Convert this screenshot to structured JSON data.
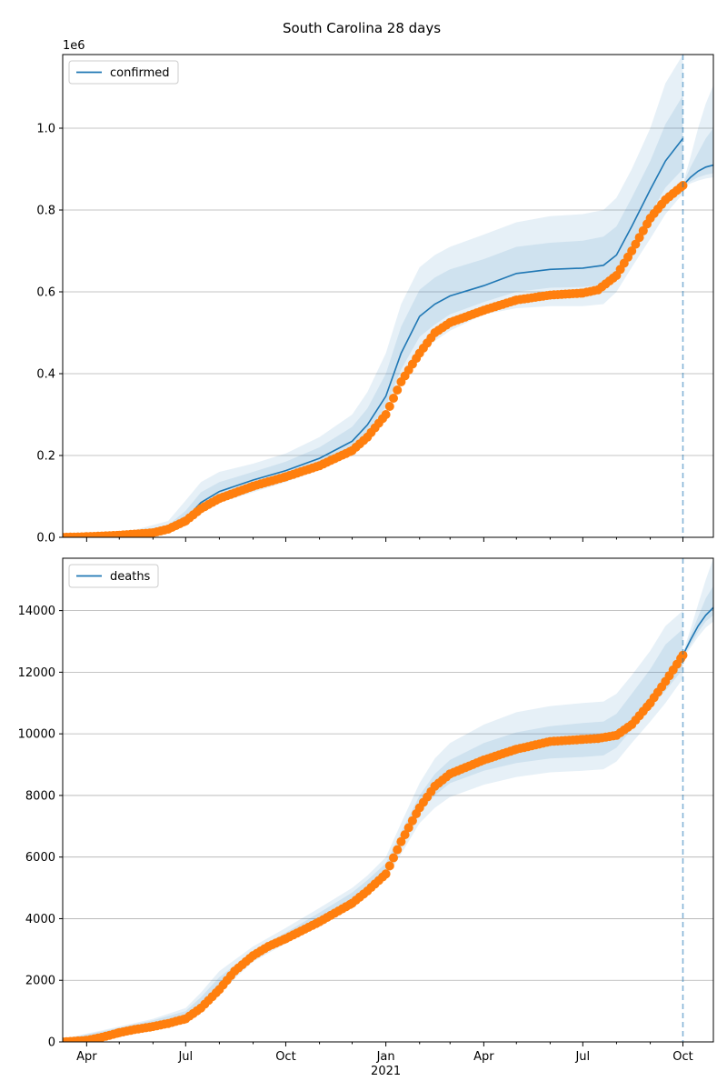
{
  "title": "South Carolina 28 days",
  "colors": {
    "model": "#1f77b4",
    "observed": "#ff7f0e",
    "band": "#1f77b4",
    "grid": "#b0b0b0"
  },
  "x_axis": {
    "ticks": [
      {
        "date": "2020-04-01",
        "label": "Apr"
      },
      {
        "date": "2020-07-01",
        "label": "Jul"
      },
      {
        "date": "2020-10-01",
        "label": "Oct"
      },
      {
        "date": "2021-01-01",
        "label": "Jan"
      },
      {
        "date": "2021-04-01",
        "label": "Apr"
      },
      {
        "date": "2021-07-01",
        "label": "Jul"
      },
      {
        "date": "2021-10-01",
        "label": "Oct"
      }
    ],
    "year_label": "2021",
    "year_label_date": "2021-01-01"
  },
  "chart_data": [
    {
      "type": "line",
      "title": "South Carolina 28 days",
      "xlabel": "",
      "ylabel": "",
      "x_range": [
        "2020-03-10",
        "2021-10-29"
      ],
      "ylim": [
        0,
        1180000
      ],
      "y_ticks": [
        0,
        200000,
        400000,
        600000,
        800000,
        1000000
      ],
      "y_tick_labels": [
        "0.0",
        "0.2",
        "0.4",
        "0.6",
        "0.8",
        "1.0"
      ],
      "y_offset_label": "1e6",
      "grid": "y",
      "legend": {
        "position": "top-left",
        "entries": [
          "confirmed"
        ]
      },
      "forecast_start": "2021-10-01",
      "series": [
        {
          "name": "confirmed",
          "style": "line",
          "x": [
            "2020-03-10",
            "2020-05-01",
            "2020-06-15",
            "2020-07-01",
            "2020-07-15",
            "2020-08-01",
            "2020-09-01",
            "2020-10-01",
            "2020-11-01",
            "2020-12-01",
            "2020-12-15",
            "2021-01-01",
            "2021-01-15",
            "2021-02-01",
            "2021-02-15",
            "2021-03-01",
            "2021-04-01",
            "2021-05-01",
            "2021-06-01",
            "2021-07-01",
            "2021-07-20",
            "2021-08-01",
            "2021-08-15",
            "2021-09-01",
            "2021-09-15",
            "2021-10-01"
          ],
          "y": [
            0,
            5000,
            22000,
            45000,
            85000,
            112000,
            140000,
            163000,
            193000,
            235000,
            275000,
            345000,
            450000,
            540000,
            570000,
            590000,
            615000,
            645000,
            655000,
            658000,
            665000,
            690000,
            760000,
            850000,
            920000,
            975000
          ]
        },
        {
          "name": "",
          "style": "band",
          "bands": [
            {
              "x": [
                "2020-03-10",
                "2020-05-01",
                "2020-06-15",
                "2020-07-01",
                "2020-07-15",
                "2020-08-01",
                "2020-09-01",
                "2020-10-01",
                "2020-11-01",
                "2020-12-01",
                "2020-12-15",
                "2021-01-01",
                "2021-01-15",
                "2021-02-01",
                "2021-02-15",
                "2021-03-01",
                "2021-04-01",
                "2021-05-01",
                "2021-06-01",
                "2021-07-01",
                "2021-07-20",
                "2021-08-01",
                "2021-08-15",
                "2021-09-01",
                "2021-09-15",
                "2021-10-01"
              ],
              "lower": [
                0,
                4000,
                15000,
                35000,
                65000,
                85000,
                110000,
                135000,
                165000,
                205000,
                240000,
                300000,
                375000,
                445000,
                480000,
                505000,
                545000,
                560000,
                565000,
                565000,
                570000,
                600000,
                660000,
                730000,
                790000,
                840000
              ],
              "upper": [
                0,
                8000,
                40000,
                90000,
                135000,
                160000,
                180000,
                205000,
                245000,
                300000,
                355000,
                450000,
                570000,
                660000,
                690000,
                710000,
                740000,
                770000,
                785000,
                790000,
                800000,
                830000,
                900000,
                1000000,
                1110000,
                1180000
              ]
            },
            {
              "x": [
                "2020-03-10",
                "2020-05-01",
                "2020-06-15",
                "2020-07-01",
                "2020-07-15",
                "2020-08-01",
                "2020-09-01",
                "2020-10-01",
                "2020-11-01",
                "2020-12-01",
                "2020-12-15",
                "2021-01-01",
                "2021-01-15",
                "2021-02-01",
                "2021-02-15",
                "2021-03-01",
                "2021-04-01",
                "2021-05-01",
                "2021-06-01",
                "2021-07-01",
                "2021-07-20",
                "2021-08-01",
                "2021-08-15",
                "2021-09-01",
                "2021-09-15",
                "2021-10-01"
              ],
              "lower": [
                0,
                4500,
                18000,
                40000,
                75000,
                98000,
                125000,
                148000,
                178000,
                220000,
                257000,
                320000,
                410000,
                490000,
                520000,
                545000,
                575000,
                600000,
                610000,
                612000,
                617000,
                645000,
                710000,
                790000,
                855000,
                900000
              ],
              "upper": [
                0,
                6500,
                30000,
                65000,
                110000,
                135000,
                160000,
                185000,
                220000,
                270000,
                315000,
                400000,
                515000,
                605000,
                635000,
                655000,
                680000,
                710000,
                720000,
                725000,
                735000,
                760000,
                830000,
                920000,
                1010000,
                1080000
              ]
            }
          ]
        },
        {
          "name": "",
          "style": "line",
          "x": [
            "2021-10-01",
            "2021-10-08",
            "2021-10-15",
            "2021-10-22",
            "2021-10-29"
          ],
          "y": [
            860000,
            880000,
            895000,
            905000,
            910000
          ]
        },
        {
          "name": "",
          "style": "band",
          "bands": [
            {
              "x": [
                "2021-10-01",
                "2021-10-08",
                "2021-10-15",
                "2021-10-22",
                "2021-10-29"
              ],
              "lower": [
                855000,
                865000,
                872000,
                877000,
                880000
              ],
              "upper": [
                865000,
                930000,
                1000000,
                1060000,
                1105000
              ]
            },
            {
              "x": [
                "2021-10-01",
                "2021-10-08",
                "2021-10-15",
                "2021-10-22",
                "2021-10-29"
              ],
              "lower": [
                857000,
                870000,
                880000,
                886000,
                890000
              ],
              "upper": [
                863000,
                905000,
                940000,
                975000,
                1000000
              ]
            }
          ]
        },
        {
          "name": "",
          "style": "scatter",
          "x": [
            "2020-03-10",
            "2020-04-01",
            "2020-05-01",
            "2020-06-01",
            "2020-06-15",
            "2020-07-01",
            "2020-07-15",
            "2020-08-01",
            "2020-09-01",
            "2020-10-01",
            "2020-11-01",
            "2020-12-01",
            "2020-12-15",
            "2021-01-01",
            "2021-01-15",
            "2021-02-01",
            "2021-02-15",
            "2021-03-01",
            "2021-04-01",
            "2021-05-01",
            "2021-06-01",
            "2021-07-01",
            "2021-07-15",
            "2021-08-01",
            "2021-08-15",
            "2021-09-01",
            "2021-09-15",
            "2021-10-01"
          ],
          "y": [
            0,
            1500,
            5000,
            11000,
            20000,
            40000,
            70000,
            95000,
            125000,
            148000,
            175000,
            212000,
            245000,
            300000,
            380000,
            450000,
            500000,
            525000,
            555000,
            580000,
            592000,
            597000,
            605000,
            640000,
            700000,
            780000,
            825000,
            860000
          ]
        }
      ]
    },
    {
      "type": "line",
      "title": "",
      "xlabel": "",
      "ylabel": "",
      "x_range": [
        "2020-03-10",
        "2021-10-29"
      ],
      "ylim": [
        0,
        15700
      ],
      "y_ticks": [
        0,
        2000,
        4000,
        6000,
        8000,
        10000,
        12000,
        14000
      ],
      "y_tick_labels": [
        "0",
        "2000",
        "4000",
        "6000",
        "8000",
        "10000",
        "12000",
        "14000"
      ],
      "grid": "y",
      "legend": {
        "position": "top-left",
        "entries": [
          "deaths"
        ]
      },
      "forecast_start": "2021-10-01",
      "series": [
        {
          "name": "deaths",
          "style": "line",
          "x": [
            "2021-10-01",
            "2021-10-08",
            "2021-10-15",
            "2021-10-22",
            "2021-10-29"
          ],
          "y": [
            12550,
            13050,
            13500,
            13850,
            14100
          ]
        },
        {
          "name": "",
          "style": "band",
          "bands": [
            {
              "x": [
                "2020-03-10",
                "2020-05-01",
                "2020-06-01",
                "2020-07-01",
                "2020-07-15",
                "2020-08-01",
                "2020-09-01",
                "2020-10-01",
                "2020-11-01",
                "2020-12-01",
                "2020-12-15",
                "2021-01-01",
                "2021-01-15",
                "2021-02-01",
                "2021-02-15",
                "2021-03-01",
                "2021-04-01",
                "2021-05-01",
                "2021-06-01",
                "2021-07-01",
                "2021-07-20",
                "2021-08-01",
                "2021-08-15",
                "2021-09-01",
                "2021-09-15",
                "2021-10-01"
              ],
              "lower": [
                0,
                350,
                550,
                800,
                1100,
                1600,
                2600,
                3200,
                3850,
                4500,
                4850,
                5300,
                6100,
                7100,
                7600,
                7950,
                8350,
                8600,
                8750,
                8800,
                8850,
                9100,
                9700,
                10400,
                11000,
                11800
              ],
              "upper": [
                100,
                500,
                750,
                1100,
                1600,
                2300,
                3100,
                3700,
                4350,
                5000,
                5400,
                6000,
                7100,
                8400,
                9200,
                9700,
                10300,
                10700,
                10900,
                11000,
                11050,
                11300,
                11900,
                12700,
                13500,
                14000
              ]
            },
            {
              "x": [
                "2020-03-10",
                "2020-05-01",
                "2020-06-01",
                "2020-07-01",
                "2020-07-15",
                "2020-08-01",
                "2020-09-01",
                "2020-10-01",
                "2020-11-01",
                "2020-12-01",
                "2020-12-15",
                "2021-01-01",
                "2021-01-15",
                "2021-02-01",
                "2021-02-15",
                "2021-03-01",
                "2021-04-01",
                "2021-05-01",
                "2021-06-01",
                "2021-07-01",
                "2021-07-20",
                "2021-08-01",
                "2021-08-15",
                "2021-09-01",
                "2021-09-15",
                "2021-10-01"
              ],
              "lower": [
                0,
                380,
                600,
                850,
                1200,
                1750,
                2750,
                3350,
                3950,
                4600,
                4950,
                5450,
                6350,
                7450,
                8000,
                8400,
                8800,
                9050,
                9200,
                9250,
                9300,
                9550,
                10150,
                10850,
                11400,
                12100
              ],
              "upper": [
                80,
                460,
                700,
                1000,
                1450,
                2100,
                2950,
                3550,
                4200,
                4850,
                5250,
                5800,
                6800,
                8000,
                8700,
                9150,
                9700,
                10050,
                10250,
                10350,
                10400,
                10650,
                11300,
                12100,
                12900,
                13400
              ]
            }
          ]
        },
        {
          "name": "",
          "style": "band",
          "bands": [
            {
              "x": [
                "2021-10-01",
                "2021-10-08",
                "2021-10-15",
                "2021-10-22",
                "2021-10-29"
              ],
              "lower": [
                12450,
                12800,
                13150,
                13450,
                13650
              ],
              "upper": [
                12650,
                13400,
                14200,
                15000,
                15700
              ]
            },
            {
              "x": [
                "2021-10-01",
                "2021-10-08",
                "2021-10-15",
                "2021-10-22",
                "2021-10-29"
              ],
              "lower": [
                12500,
                12900,
                13300,
                13650,
                13850
              ],
              "upper": [
                12600,
                13200,
                13800,
                14400,
                14800
              ]
            }
          ]
        },
        {
          "name": "",
          "style": "scatter",
          "x": [
            "2020-03-10",
            "2020-04-01",
            "2020-04-15",
            "2020-05-01",
            "2020-05-15",
            "2020-06-01",
            "2020-06-15",
            "2020-07-01",
            "2020-07-15",
            "2020-08-01",
            "2020-08-15",
            "2020-09-01",
            "2020-09-15",
            "2020-10-01",
            "2020-11-01",
            "2020-12-01",
            "2020-12-15",
            "2021-01-01",
            "2021-01-15",
            "2021-02-01",
            "2021-02-15",
            "2021-03-01",
            "2021-04-01",
            "2021-05-01",
            "2021-06-01",
            "2021-07-01",
            "2021-07-15",
            "2021-08-01",
            "2021-08-15",
            "2021-09-01",
            "2021-09-15",
            "2021-10-01"
          ],
          "y": [
            0,
            50,
            150,
            300,
            400,
            500,
            600,
            750,
            1100,
            1700,
            2300,
            2800,
            3100,
            3350,
            3900,
            4500,
            4900,
            5450,
            6500,
            7600,
            8300,
            8700,
            9150,
            9500,
            9750,
            9820,
            9850,
            9950,
            10300,
            11000,
            11700,
            12550
          ]
        }
      ]
    }
  ]
}
